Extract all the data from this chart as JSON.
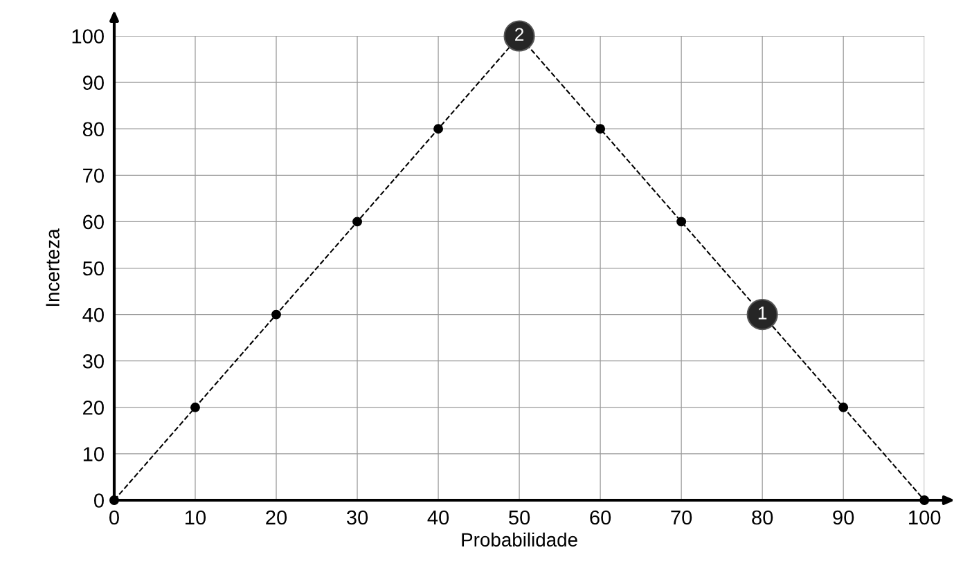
{
  "chart_data": {
    "type": "line",
    "xlabel": "Probabilidade",
    "ylabel": "Incerteza",
    "x": [
      0,
      10,
      20,
      30,
      40,
      50,
      60,
      70,
      80,
      90,
      100
    ],
    "series": [
      {
        "color": "#000000",
        "values": [
          0,
          20,
          40,
          60,
          80,
          100,
          80,
          60,
          40,
          20,
          0
        ]
      }
    ],
    "xlim": [
      0,
      100
    ],
    "ylim": [
      0,
      100
    ],
    "xticks": [
      0,
      10,
      20,
      30,
      40,
      50,
      60,
      70,
      80,
      90,
      100
    ],
    "yticks": [
      0,
      10,
      20,
      30,
      40,
      50,
      60,
      70,
      80,
      90,
      100
    ],
    "grid": true,
    "marker": "circle",
    "line_style": "dashed",
    "annotations": [
      {
        "text": "2",
        "x": 50,
        "y": 100
      },
      {
        "text": "1",
        "x": 80,
        "y": 40
      }
    ]
  }
}
